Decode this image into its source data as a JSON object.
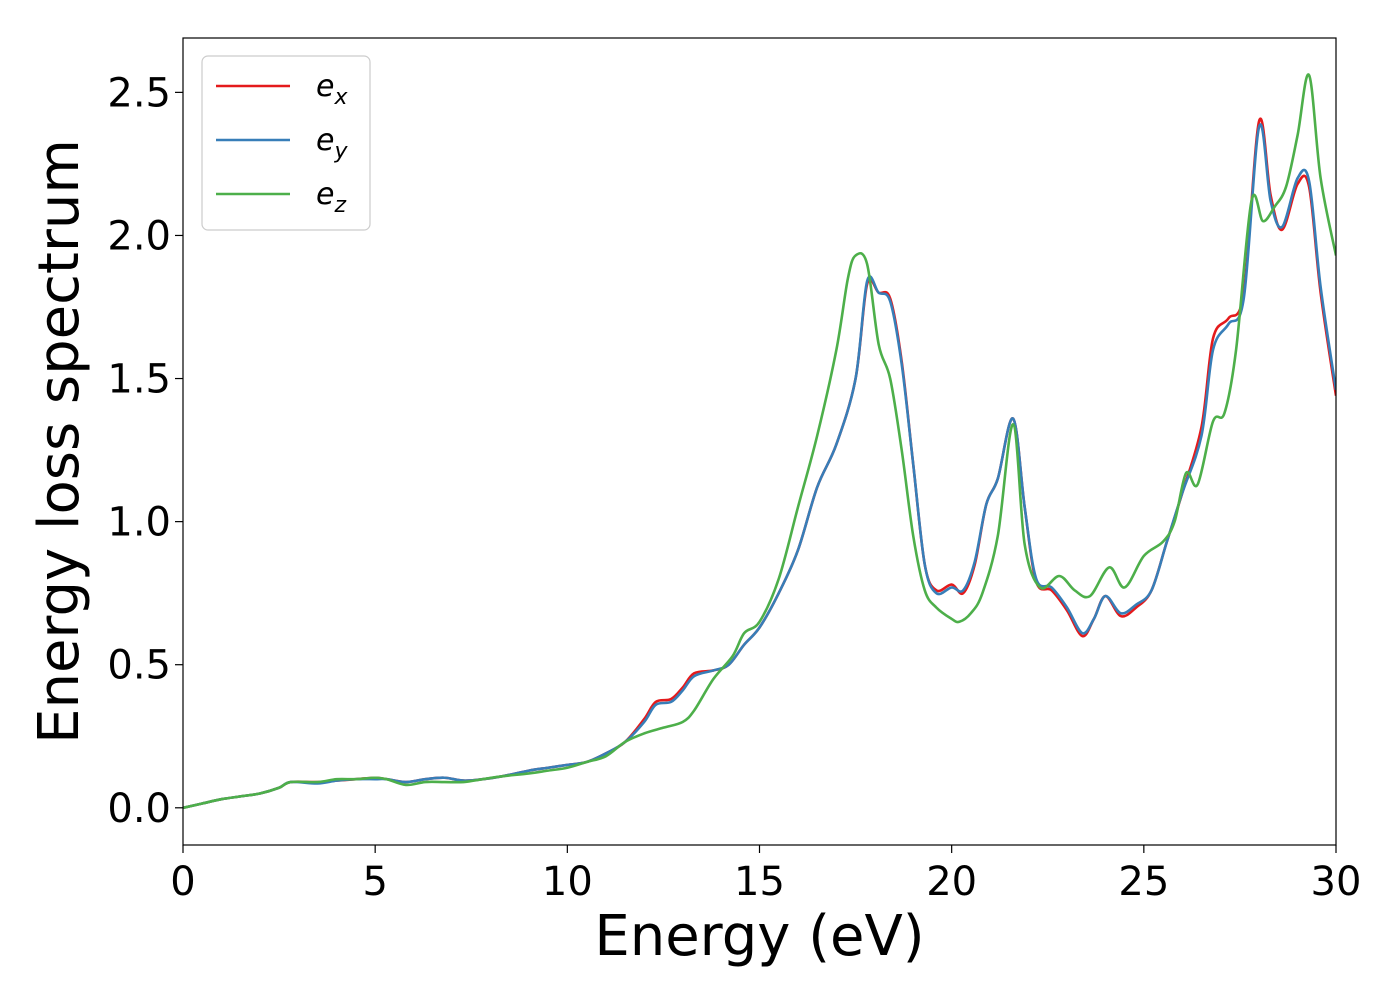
{
  "colors": {
    "ex": "#e41a1c",
    "ey": "#377eb8",
    "ez": "#4daf4a",
    "axis": "#000000",
    "background": "#ffffff"
  },
  "chart_data": {
    "type": "line",
    "xlabel": "Energy (eV)",
    "ylabel": "Energy loss spectrum",
    "xlim": [
      0,
      30
    ],
    "ylim": [
      -0.13,
      2.69
    ],
    "xticks": [
      0,
      5,
      10,
      15,
      20,
      25,
      30
    ],
    "xtick_labels": [
      "0",
      "5",
      "10",
      "15",
      "20",
      "25",
      "30"
    ],
    "yticks": [
      0.0,
      0.5,
      1.0,
      1.5,
      2.0,
      2.5
    ],
    "ytick_labels": [
      "0.0",
      "0.5",
      "1.0",
      "1.5",
      "2.0",
      "2.5"
    ],
    "grid": false,
    "legend_position": "top-left",
    "series": [
      {
        "name": "e_x",
        "label_main": "e",
        "label_sub": "x",
        "color": "#e41a1c",
        "x": [
          0,
          0.5,
          1,
          1.5,
          2,
          2.5,
          2.8,
          3.5,
          4,
          4.5,
          5,
          5.3,
          5.8,
          6.3,
          6.8,
          7.3,
          7.8,
          8.3,
          9,
          9.5,
          10,
          10.5,
          11,
          11.5,
          12,
          12.3,
          12.7,
          13,
          13.3,
          13.8,
          14.2,
          14.6,
          15,
          15.5,
          16,
          16.5,
          17,
          17.5,
          17.8,
          18.1,
          18.4,
          18.7,
          19,
          19.3,
          19.6,
          20,
          20.3,
          20.6,
          20.9,
          21.2,
          21.6,
          21.9,
          22.2,
          22.6,
          23,
          23.4,
          23.7,
          24,
          24.4,
          24.8,
          25.2,
          25.6,
          26,
          26.5,
          26.8,
          27.2,
          27.6,
          28,
          28.3,
          28.6,
          29,
          29.3,
          29.6,
          30
        ],
        "y": [
          0,
          0.015,
          0.03,
          0.04,
          0.05,
          0.07,
          0.09,
          0.09,
          0.095,
          0.1,
          0.105,
          0.1,
          0.09,
          0.1,
          0.105,
          0.095,
          0.1,
          0.11,
          0.13,
          0.14,
          0.15,
          0.16,
          0.19,
          0.23,
          0.31,
          0.37,
          0.38,
          0.42,
          0.47,
          0.48,
          0.5,
          0.57,
          0.63,
          0.75,
          0.9,
          1.12,
          1.27,
          1.5,
          1.83,
          1.8,
          1.78,
          1.56,
          1.2,
          0.85,
          0.76,
          0.78,
          0.75,
          0.85,
          1.06,
          1.15,
          1.36,
          1.05,
          0.79,
          0.76,
          0.69,
          0.6,
          0.66,
          0.74,
          0.67,
          0.7,
          0.76,
          0.93,
          1.1,
          1.33,
          1.64,
          1.71,
          1.8,
          2.4,
          2.14,
          2.02,
          2.18,
          2.17,
          1.8,
          1.44
        ]
      },
      {
        "name": "e_y",
        "label_main": "e",
        "label_sub": "y",
        "color": "#377eb8",
        "x": [
          0,
          0.5,
          1,
          1.5,
          2,
          2.5,
          2.8,
          3.5,
          4,
          4.5,
          5,
          5.3,
          5.8,
          6.3,
          6.8,
          7.3,
          7.8,
          8.3,
          9,
          9.5,
          10,
          10.5,
          11,
          11.5,
          12,
          12.3,
          12.7,
          13,
          13.3,
          13.8,
          14.2,
          14.6,
          15,
          15.5,
          16,
          16.5,
          17,
          17.5,
          17.8,
          18.1,
          18.4,
          18.7,
          19,
          19.3,
          19.6,
          20,
          20.3,
          20.6,
          20.9,
          21.2,
          21.6,
          21.9,
          22.2,
          22.6,
          23,
          23.4,
          23.7,
          24,
          24.4,
          24.8,
          25.2,
          25.6,
          26,
          26.5,
          26.8,
          27.2,
          27.6,
          28,
          28.3,
          28.6,
          29,
          29.3,
          29.6,
          30
        ],
        "y": [
          0,
          0.015,
          0.03,
          0.04,
          0.05,
          0.07,
          0.09,
          0.085,
          0.095,
          0.1,
          0.1,
          0.1,
          0.09,
          0.1,
          0.105,
          0.095,
          0.1,
          0.11,
          0.13,
          0.14,
          0.15,
          0.16,
          0.19,
          0.23,
          0.3,
          0.36,
          0.37,
          0.41,
          0.46,
          0.48,
          0.5,
          0.57,
          0.63,
          0.75,
          0.9,
          1.12,
          1.27,
          1.5,
          1.84,
          1.8,
          1.77,
          1.55,
          1.2,
          0.85,
          0.75,
          0.77,
          0.76,
          0.86,
          1.06,
          1.15,
          1.36,
          1.05,
          0.8,
          0.77,
          0.7,
          0.61,
          0.66,
          0.74,
          0.68,
          0.71,
          0.76,
          0.93,
          1.1,
          1.3,
          1.6,
          1.69,
          1.78,
          2.38,
          2.12,
          2.03,
          2.2,
          2.19,
          1.82,
          1.46
        ]
      },
      {
        "name": "e_z",
        "label_main": "e",
        "label_sub": "z",
        "color": "#4daf4a",
        "x": [
          0,
          0.5,
          1,
          1.5,
          2,
          2.5,
          2.8,
          3.5,
          4,
          4.5,
          5,
          5.3,
          5.8,
          6.3,
          6.8,
          7.3,
          7.8,
          8.3,
          9,
          9.5,
          10,
          10.5,
          11,
          11.5,
          12,
          12.5,
          13,
          13.3,
          13.8,
          14.3,
          14.6,
          15,
          15.5,
          16,
          16.5,
          17,
          17.3,
          17.5,
          17.8,
          18.1,
          18.4,
          18.7,
          19,
          19.3,
          19.6,
          20,
          20.2,
          20.5,
          20.8,
          21.2,
          21.6,
          21.9,
          22.3,
          22.8,
          23.2,
          23.6,
          24.1,
          24.5,
          25,
          25.5,
          25.8,
          26.1,
          26.4,
          26.8,
          27.1,
          27.4,
          27.8,
          28.1,
          28.4,
          28.7,
          29,
          29.3,
          29.6,
          30
        ],
        "y": [
          0,
          0.015,
          0.03,
          0.04,
          0.05,
          0.07,
          0.09,
          0.09,
          0.1,
          0.1,
          0.105,
          0.1,
          0.08,
          0.09,
          0.09,
          0.09,
          0.1,
          0.11,
          0.12,
          0.13,
          0.14,
          0.16,
          0.18,
          0.23,
          0.26,
          0.28,
          0.3,
          0.34,
          0.45,
          0.53,
          0.61,
          0.65,
          0.8,
          1.05,
          1.3,
          1.6,
          1.85,
          1.93,
          1.9,
          1.62,
          1.5,
          1.25,
          0.95,
          0.76,
          0.7,
          0.66,
          0.65,
          0.68,
          0.75,
          0.95,
          1.34,
          0.92,
          0.77,
          0.81,
          0.76,
          0.74,
          0.84,
          0.77,
          0.88,
          0.93,
          1.0,
          1.17,
          1.13,
          1.35,
          1.38,
          1.6,
          2.12,
          2.05,
          2.1,
          2.17,
          2.35,
          2.56,
          2.2,
          1.93
        ]
      }
    ]
  }
}
